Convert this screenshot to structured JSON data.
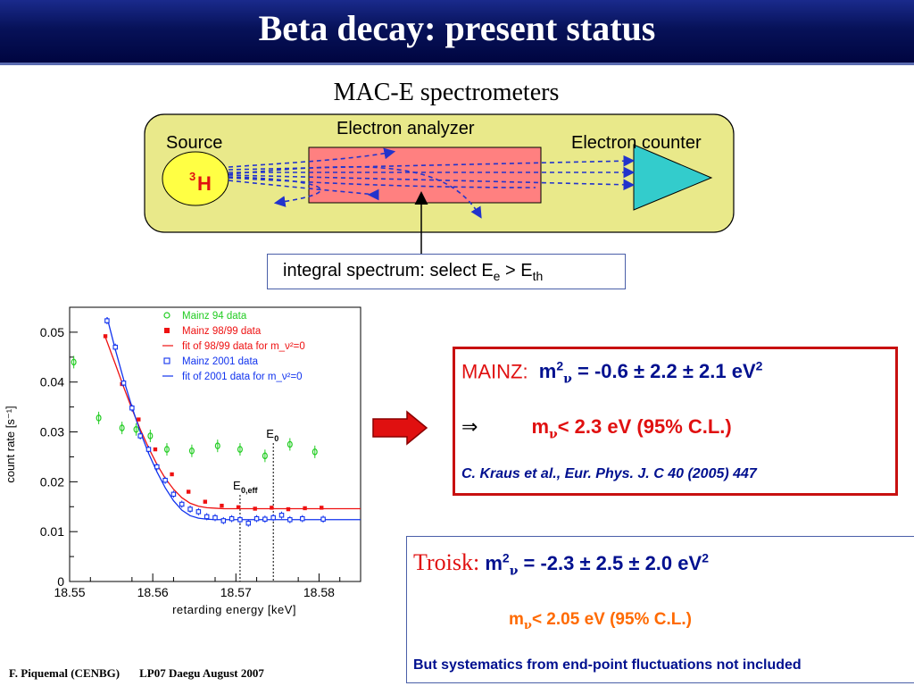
{
  "title": "Beta decay: present status",
  "subtitle": "MAC-E spectrometers",
  "diagram": {
    "source_label": "Source",
    "isotope_sup": "3",
    "isotope": "H",
    "analyzer_label": "Electron analyzer",
    "counter_label": "Electron counter",
    "integral_text": "integral spectrum: select E",
    "integral_sub_e": "e",
    "integral_gt": " > E",
    "integral_sub_th": "th"
  },
  "chart_data": {
    "type": "scatter",
    "xlabel": "retarding energy  [keV]",
    "ylabel": "count rate  [s⁻¹]",
    "xlim": [
      18.55,
      18.585
    ],
    "ylim": [
      0,
      0.055
    ],
    "x_ticks": [
      18.55,
      18.56,
      18.57,
      18.58
    ],
    "x_tick_labels": [
      "18.55",
      "18.56",
      "18.57",
      "18.58"
    ],
    "y_ticks": [
      0,
      0.01,
      0.02,
      0.03,
      0.04,
      0.05
    ],
    "y_tick_labels": [
      "0",
      "0.01",
      "0.02",
      "0.03",
      "0.04",
      "0.05"
    ],
    "legend": [
      {
        "label": "Mainz 94 data",
        "marker": "open-circle",
        "color": "#22cc22"
      },
      {
        "label": "Mainz 98/99 data",
        "marker": "filled-square",
        "color": "#ee1111"
      },
      {
        "label": "fit of 98/99 data for m_ν²=0",
        "marker": "line",
        "color": "#ee1111"
      },
      {
        "label": "Mainz 2001 data",
        "marker": "open-square",
        "color": "#1133ee"
      },
      {
        "label": "fit of 2001 data for m_ν²=0",
        "marker": "line",
        "color": "#1133ee"
      }
    ],
    "legend_placement": "top-right",
    "series": [
      {
        "name": "Mainz 94 data",
        "color": "#22cc22",
        "x": [
          18.5505,
          18.5535,
          18.5563,
          18.558,
          18.5597,
          18.5617,
          18.5647,
          18.5678,
          18.5705,
          18.5735,
          18.5765,
          18.5795
        ],
        "y": [
          0.044,
          0.0328,
          0.0308,
          0.0305,
          0.0292,
          0.0265,
          0.0262,
          0.0272,
          0.0265,
          0.0252,
          0.0275,
          0.026
        ]
      },
      {
        "name": "Mainz 98/99 data",
        "color": "#ee1111",
        "x": [
          18.5543,
          18.5563,
          18.5583,
          18.5603,
          18.5623,
          18.5643,
          18.5663,
          18.5683,
          18.5703,
          18.5723,
          18.5743,
          18.5763,
          18.5783,
          18.5803
        ],
        "y": [
          0.0492,
          0.0396,
          0.0325,
          0.0265,
          0.0215,
          0.018,
          0.016,
          0.0152,
          0.0149,
          0.0146,
          0.0148,
          0.0145,
          0.0147,
          0.0148
        ]
      },
      {
        "name": "Mainz 2001 data",
        "color": "#1133ee",
        "x": [
          18.5545,
          18.5555,
          18.5565,
          18.5575,
          18.5585,
          18.5595,
          18.5605,
          18.5615,
          18.5625,
          18.5635,
          18.5645,
          18.5655,
          18.5665,
          18.5675,
          18.5685,
          18.5695,
          18.5705,
          18.5715,
          18.5725,
          18.5735,
          18.5745,
          18.5755,
          18.5765,
          18.578,
          18.5805
        ],
        "y": [
          0.0523,
          0.047,
          0.0398,
          0.0348,
          0.0292,
          0.0265,
          0.023,
          0.0203,
          0.0175,
          0.0155,
          0.0145,
          0.014,
          0.013,
          0.0128,
          0.0122,
          0.0126,
          0.0124,
          0.0117,
          0.0126,
          0.0125,
          0.0128,
          0.0133,
          0.0124,
          0.0126,
          0.0125
        ]
      },
      {
        "name": "fit of 98/99 data for m_ν²=0",
        "color": "#ee1111",
        "kind": "line",
        "x": [
          18.5543,
          18.5555,
          18.5565,
          18.5575,
          18.5585,
          18.5595,
          18.5605,
          18.5615,
          18.5625,
          18.5635,
          18.5645,
          18.5655,
          18.5665,
          18.5675,
          18.5685,
          18.585
        ],
        "y": [
          0.049,
          0.0436,
          0.039,
          0.0346,
          0.0305,
          0.0268,
          0.0235,
          0.0207,
          0.0185,
          0.0168,
          0.0157,
          0.0151,
          0.0148,
          0.0147,
          0.0146,
          0.0146
        ]
      },
      {
        "name": "fit of 2001 data for m_ν²=0",
        "color": "#1133ee",
        "kind": "line",
        "x": [
          18.5545,
          18.5555,
          18.5565,
          18.5575,
          18.5585,
          18.5595,
          18.5605,
          18.5615,
          18.5625,
          18.5635,
          18.5645,
          18.5655,
          18.5665,
          18.5675,
          18.5685,
          18.585
        ],
        "y": [
          0.053,
          0.0465,
          0.0405,
          0.035,
          0.03,
          0.0257,
          0.022,
          0.0188,
          0.0162,
          0.0143,
          0.0132,
          0.0127,
          0.0125,
          0.0124,
          0.0124,
          0.0124
        ]
      }
    ],
    "annotations": [
      {
        "label": "E",
        "sub": "0",
        "x": 18.5745
      },
      {
        "label": "E",
        "sub": "0,eff",
        "x": 18.5705
      }
    ]
  },
  "mainz": {
    "label": "MAINZ:",
    "mass_sq": "m",
    "mass_sq_sup": "2",
    "nu": "ν",
    "value": " = -0.6 ± 2.2 ± 2.1 eV",
    "value_sup": "2",
    "implies": "⇒",
    "limit_m": "m",
    "limit_nu": "ν",
    "limit_text": "< 2.3 eV  (95% C.L.)",
    "reference": "C. Kraus et al., Eur. Phys. J. C 40 (2005) 447"
  },
  "troisk": {
    "label": "Troisk:",
    "mass_sq": "m",
    "mass_sq_sup": "2",
    "nu": "ν",
    "value": " = -2.3 ± 2.5 ± 2.0 eV",
    "value_sup": "2",
    "limit_m": "m",
    "limit_nu": "ν",
    "limit_text": "< 2.05 eV  (95% C.L.)",
    "note": "But systematics from end-point fluctuations not included"
  },
  "footer": {
    "author": "F. Piquemal (CENBG)",
    "event": "LP07 Daegu August 2007"
  },
  "colors": {
    "title_bg": "#000540",
    "diagram_bg": "#e9e98a",
    "analyzer_fill": "#ff8080",
    "counter_fill": "#33cccc",
    "source_fill": "#ffff44",
    "mainz_border": "#c81010",
    "troisk_label": "#c81010",
    "navy_text": "#00108f",
    "orange_text": "#ff6a00"
  }
}
